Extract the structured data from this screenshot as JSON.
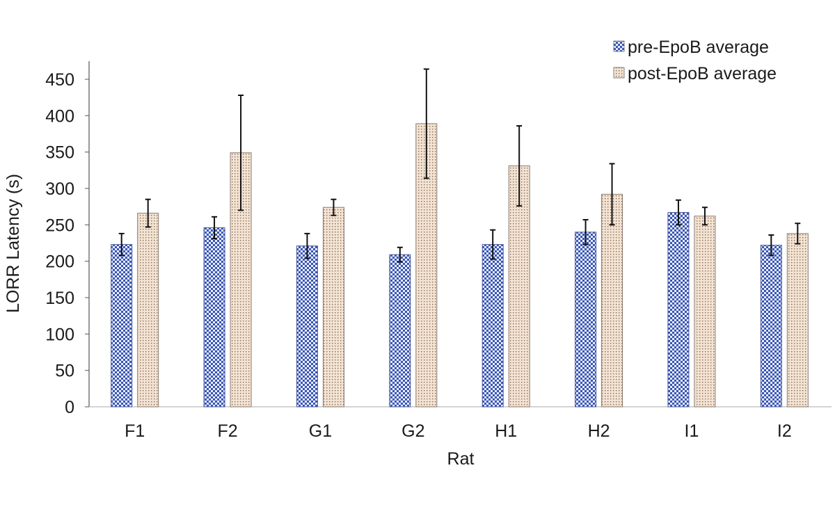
{
  "chart_data": {
    "type": "bar",
    "title": "",
    "xlabel": "Rat",
    "ylabel": "LORR Latency (s)",
    "ylim": [
      0,
      450
    ],
    "yticks": [
      0,
      50,
      100,
      150,
      200,
      250,
      300,
      350,
      400,
      450
    ],
    "grid": false,
    "legend_position": "top-right",
    "categories": [
      "F1",
      "F2",
      "G1",
      "G2",
      "H1",
      "H2",
      "I1",
      "I2"
    ],
    "series": [
      {
        "name": "pre-EpoB average",
        "pattern": "checkerboard",
        "color": "#3a55b0",
        "values": [
          223,
          246,
          221,
          209,
          223,
          240,
          267,
          222
        ],
        "errors": [
          15,
          15,
          17,
          10,
          20,
          17,
          17,
          14
        ]
      },
      {
        "name": "post-EpoB average",
        "pattern": "dots",
        "color": "#f1dfcc",
        "values": [
          266,
          349,
          274,
          389,
          331,
          292,
          262,
          238
        ],
        "errors": [
          19,
          79,
          11,
          75,
          55,
          42,
          12,
          14
        ]
      }
    ]
  }
}
